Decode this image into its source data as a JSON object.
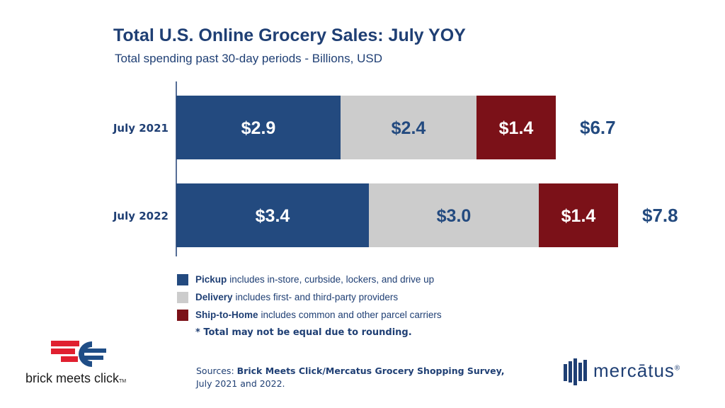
{
  "chart_data": {
    "type": "bar",
    "orientation": "horizontal",
    "stacked": true,
    "title": "Total U.S. Online Grocery Sales: July YOY",
    "subtitle": "Total spending past 30-day periods - Billions, USD",
    "categories": [
      "July 2021",
      "July 2022"
    ],
    "series": [
      {
        "name": "Pickup",
        "values": [
          2.9,
          3.4
        ],
        "labels": [
          "$2.9",
          "$3.4"
        ],
        "color": "#234a7f",
        "label_color": "#ffffff"
      },
      {
        "name": "Delivery",
        "values": [
          2.4,
          3.0
        ],
        "labels": [
          "$2.4",
          "$3.0"
        ],
        "color": "#cccccc",
        "label_color": "#234a7f"
      },
      {
        "name": "Ship-to-Home",
        "values": [
          1.4,
          1.4
        ],
        "labels": [
          "$1.4",
          "$1.4"
        ],
        "color": "#7b1118",
        "label_color": "#ffffff"
      }
    ],
    "totals": [
      6.7,
      7.8
    ],
    "total_labels": [
      "$6.7",
      "$7.8"
    ],
    "xlim": [
      0,
      10
    ],
    "grid": false,
    "legend_position": "bottom"
  },
  "legend": [
    {
      "name": "Pickup",
      "desc": "includes in-store, curbside, lockers, and drive up",
      "color": "#234a7f"
    },
    {
      "name": "Delivery",
      "desc": "includes first- and third-party providers",
      "color": "#cccccc"
    },
    {
      "name": "Ship-to-Home",
      "desc": "includes common and other parcel carriers",
      "color": "#7b1118"
    }
  ],
  "note": "* Total may not be equal due to rounding.",
  "sources": {
    "prefix": "Sources: ",
    "bold": "Brick Meets Click/Mercatus Grocery Shopping Survey,",
    "line2": "July 2021 and 2022."
  },
  "logos": {
    "left": {
      "text": "brick meets click",
      "tm": "TM"
    },
    "right": {
      "text": "mercātus",
      "reg": "®"
    }
  },
  "colors": {
    "text": "#1f3f74",
    "pickup": "#234a7f",
    "delivery": "#cccccc",
    "ship": "#7b1118",
    "logo_red": "#e02030"
  }
}
